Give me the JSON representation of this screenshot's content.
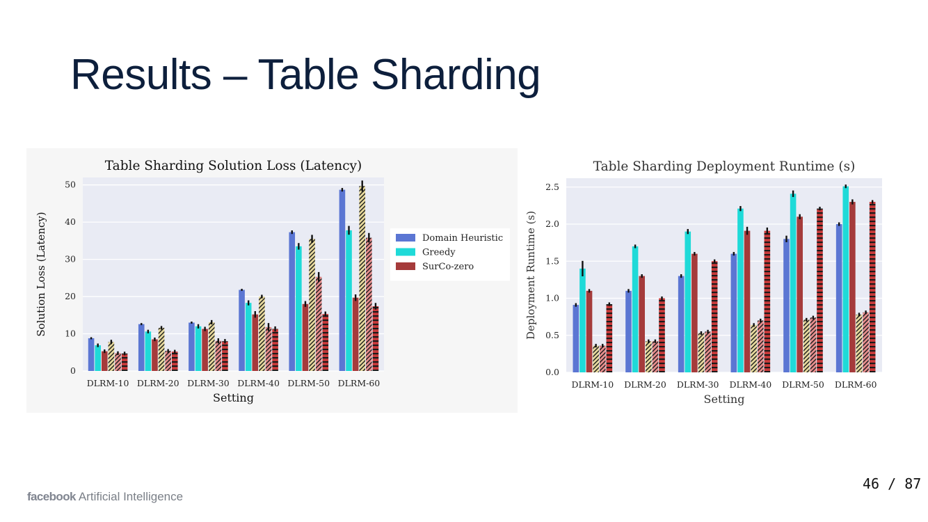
{
  "slide": {
    "title": "Results – Table Sharding",
    "footer_brand": "facebook",
    "footer_text": "Artificial Intelligence",
    "page_number": "46 / 87"
  },
  "chart_data": [
    {
      "type": "bar",
      "title": "Table Sharding Solution Loss (Latency)",
      "xlabel": "Setting",
      "ylabel": "Solution Loss (Latency)",
      "ylim": [
        0,
        52
      ],
      "yticks": [
        0,
        10,
        20,
        30,
        40,
        50
      ],
      "grid": true,
      "legend": "right, outside",
      "categories": [
        "DLRM-10",
        "DLRM-20",
        "DLRM-30",
        "DLRM-40",
        "DLRM-50",
        "DLRM-60"
      ],
      "series": [
        {
          "name": "Domain Heuristic",
          "color": "#5b76d3",
          "pattern": "solid",
          "values": [
            8.8,
            12.6,
            13.0,
            21.8,
            37.3,
            48.7
          ],
          "err": [
            0,
            0,
            0,
            0,
            0.2,
            0.2
          ]
        },
        {
          "name": "Greedy",
          "color": "#1fdad8",
          "pattern": "solid",
          "values": [
            6.9,
            10.6,
            12.0,
            18.3,
            33.5,
            37.8
          ],
          "err": [
            0.2,
            0.2,
            0.3,
            0.4,
            0.6,
            0.9
          ]
        },
        {
          "name": "SurCo-zero",
          "color": "#a53b3b",
          "pattern": "solid",
          "values": [
            5.3,
            8.5,
            11.3,
            15.2,
            18.0,
            19.7
          ],
          "err": [
            0.2,
            0.2,
            0.3,
            0.6,
            0.5,
            0.6
          ]
        },
        {
          "name": "",
          "color": "#e6d89c",
          "pattern": "diag",
          "values": [
            7.8,
            11.6,
            13.1,
            20.0,
            35.5,
            49.7
          ],
          "err": [
            0.3,
            0.2,
            0.3,
            0.2,
            0.8,
            1.2
          ]
        },
        {
          "name": "",
          "color": "#e58c8c",
          "pattern": "diag",
          "values": [
            4.8,
            5.4,
            8.1,
            11.8,
            25.3,
            35.8
          ],
          "err": [
            0.2,
            0.2,
            0.4,
            0.8,
            1.0,
            1.0
          ]
        },
        {
          "name": "",
          "color": "#c83a3a",
          "pattern": "horiz",
          "values": [
            4.7,
            5.2,
            8.0,
            11.3,
            15.3,
            17.4
          ],
          "err": [
            0.2,
            0.2,
            0.3,
            0.4,
            0.4,
            0.6
          ]
        }
      ]
    },
    {
      "type": "bar",
      "title": "Table Sharding Deployment Runtime (s)",
      "xlabel": "Setting",
      "ylabel": "Deployment Runtime (s)",
      "ylim": [
        0,
        2.62
      ],
      "yticks": [
        "0.0",
        "0.5",
        "1.0",
        "1.5",
        "2.0",
        "2.5"
      ],
      "grid": true,
      "legend": "none",
      "categories": [
        "DLRM-10",
        "DLRM-20",
        "DLRM-30",
        "DLRM-40",
        "DLRM-50",
        "DLRM-60"
      ],
      "series": [
        {
          "name": "",
          "color": "#5b76d3",
          "pattern": "solid",
          "values": [
            0.91,
            1.1,
            1.3,
            1.6,
            1.8,
            2.0
          ],
          "err": [
            0.01,
            0.01,
            0.01,
            0.01,
            0.03,
            0.01
          ]
        },
        {
          "name": "",
          "color": "#1fdad8",
          "pattern": "solid",
          "values": [
            1.4,
            1.7,
            1.9,
            2.21,
            2.41,
            2.51
          ],
          "err": [
            0.09,
            0.01,
            0.02,
            0.02,
            0.03,
            0.01
          ]
        },
        {
          "name": "",
          "color": "#a53b3b",
          "pattern": "solid",
          "values": [
            1.1,
            1.3,
            1.6,
            1.91,
            2.1,
            2.3
          ],
          "err": [
            0.01,
            0.01,
            0.01,
            0.04,
            0.02,
            0.02
          ]
        },
        {
          "name": "",
          "color": "#e6d89c",
          "pattern": "diag",
          "values": [
            0.36,
            0.42,
            0.53,
            0.64,
            0.71,
            0.78
          ],
          "err": [
            0.01,
            0.01,
            0.01,
            0.01,
            0.01,
            0.01
          ]
        },
        {
          "name": "",
          "color": "#e58c8c",
          "pattern": "diag",
          "values": [
            0.36,
            0.42,
            0.55,
            0.7,
            0.74,
            0.81
          ],
          "err": [
            0.01,
            0.01,
            0.01,
            0.01,
            0.01,
            0.01
          ]
        },
        {
          "name": "",
          "color": "#c83a3a",
          "pattern": "horiz",
          "values": [
            0.92,
            1.0,
            1.5,
            1.91,
            2.21,
            2.3
          ],
          "err": [
            0.01,
            0.01,
            0.01,
            0.03,
            0.01,
            0.01
          ]
        }
      ]
    }
  ]
}
